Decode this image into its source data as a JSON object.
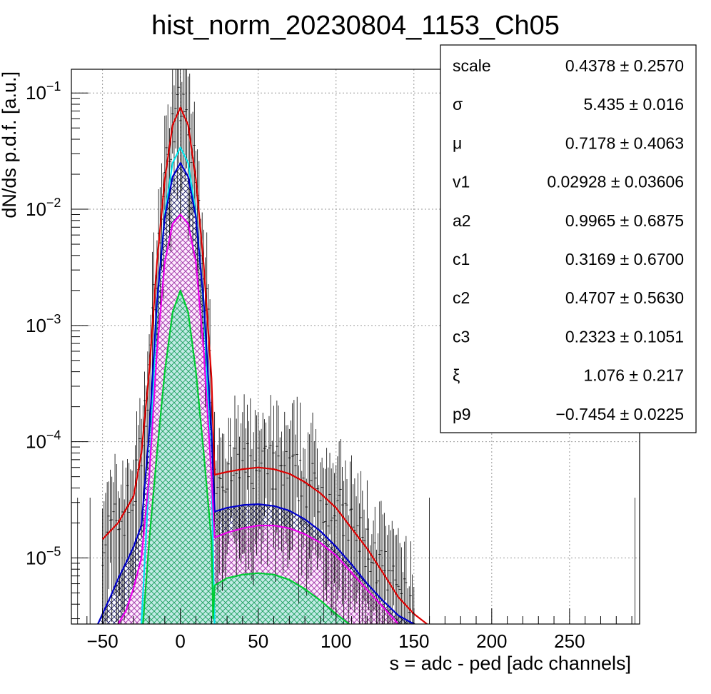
{
  "chart_data": {
    "type": "line",
    "title": "hist_norm_20230804_1153_Ch05",
    "xlabel": "s = adc - ped [adc channels]",
    "ylabel": "dN/ds p.d.f. [a.u.]",
    "x_range": [
      -70,
      295
    ],
    "y_range": [
      2.7e-06,
      0.16
    ],
    "y_scale": "log",
    "grid": true,
    "x_ticks": [
      {
        "value": -50,
        "label": "−50"
      },
      {
        "value": 0,
        "label": "0"
      },
      {
        "value": 50,
        "label": "50"
      },
      {
        "value": 100,
        "label": "100"
      },
      {
        "value": 150,
        "label": "150"
      },
      {
        "value": 200,
        "label": "200"
      },
      {
        "value": 250,
        "label": "250"
      }
    ],
    "y_ticks": [
      {
        "value": 1e-05,
        "base": "10",
        "exp": "−5"
      },
      {
        "value": 0.0001,
        "base": "10",
        "exp": "−4"
      },
      {
        "value": 0.001,
        "base": "10",
        "exp": "−3"
      },
      {
        "value": 0.01,
        "base": "10",
        "exp": "−2"
      },
      {
        "value": 0.1,
        "base": "10",
        "exp": "−1"
      }
    ],
    "series": [
      {
        "color": "#dd0000",
        "fill": "none",
        "x": [
          -50,
          -40,
          -30,
          -25,
          -20,
          -15,
          -10,
          -5,
          0,
          5,
          10,
          15,
          20,
          22,
          30,
          40,
          50,
          60,
          70,
          80,
          90,
          100,
          110,
          120,
          130,
          140,
          150,
          160
        ],
        "y": [
          1.45e-05,
          2e-05,
          3.4e-05,
          8e-05,
          0.0004,
          0.0035,
          0.018,
          0.053,
          0.075,
          0.053,
          0.018,
          0.0033,
          0.00035,
          5.2e-05,
          5.5e-05,
          5.8e-05,
          6e-05,
          5.8e-05,
          5.3e-05,
          4.5e-05,
          3.6e-05,
          2.7e-05,
          1.8e-05,
          1.2e-05,
          7.5e-06,
          4.6e-06,
          3.3e-06,
          2.6e-06
        ]
      },
      {
        "color": "#00e5ee",
        "fill": "none",
        "x": [
          -25,
          -20,
          -15,
          -10,
          -5,
          0,
          5,
          10,
          15,
          20,
          22
        ],
        "y": [
          2.7e-06,
          5e-05,
          0.0015,
          0.009,
          0.025,
          0.034,
          0.025,
          0.009,
          0.0015,
          5e-05,
          2.7e-06
        ]
      },
      {
        "color": "#0000cc",
        "fill": "#000066",
        "x": [
          -53,
          -45,
          -40,
          -35,
          -30,
          -25,
          -20,
          -15,
          -10,
          -5,
          0,
          5,
          10,
          15,
          20,
          22,
          30,
          40,
          50,
          60,
          70,
          80,
          90,
          100,
          110,
          120,
          130,
          140,
          150,
          160
        ],
        "y": [
          2.7e-06,
          4.6e-06,
          6.6e-06,
          9e-06,
          1.25e-05,
          1.9e-05,
          0.00012,
          0.0016,
          0.0085,
          0.019,
          0.025,
          0.019,
          0.0085,
          0.0016,
          0.00012,
          2.5e-05,
          2.7e-05,
          2.85e-05,
          2.9e-05,
          2.8e-05,
          2.55e-05,
          2.15e-05,
          1.7e-05,
          1.25e-05,
          8.8e-06,
          6e-06,
          4.3e-06,
          3.2e-06,
          2.7e-06,
          2.1e-06
        ]
      },
      {
        "color": "#ee00ee",
        "fill": "#990099",
        "x": [
          -40,
          -35,
          -30,
          -25,
          -20,
          -15,
          -10,
          -5,
          0,
          5,
          10,
          15,
          20,
          22,
          30,
          40,
          50,
          60,
          70,
          80,
          90,
          100,
          110,
          120,
          130,
          140,
          150
        ],
        "y": [
          2.7e-06,
          3.5e-06,
          5.5e-06,
          1e-05,
          5e-05,
          0.0006,
          0.0035,
          0.0075,
          0.009,
          0.0075,
          0.0035,
          0.0006,
          5e-05,
          1.5e-05,
          1.65e-05,
          1.8e-05,
          1.9e-05,
          1.9e-05,
          1.8e-05,
          1.6e-05,
          1.35e-05,
          1.05e-05,
          7.5e-06,
          5.3e-06,
          3.8e-06,
          2.7e-06,
          2.1e-06
        ]
      },
      {
        "color": "#00cc33",
        "fill": "#009933",
        "x": [
          -24,
          -20,
          -15,
          -10,
          -5,
          0,
          5,
          10,
          15,
          20,
          21,
          22,
          30,
          40,
          50,
          60,
          70,
          80,
          90,
          100,
          110
        ],
        "y": [
          2.7e-06,
          1.4e-05,
          8e-05,
          0.0004,
          0.0013,
          0.002,
          0.0013,
          0.0004,
          8e-05,
          1.4e-05,
          3e-06,
          5.8e-06,
          6.7e-06,
          7.2e-06,
          7.4e-06,
          7.2e-06,
          6.5e-06,
          5.4e-06,
          4.3e-06,
          3.3e-06,
          2.6e-06
        ]
      }
    ]
  },
  "stats_box": {
    "rows": [
      {
        "name": "scale",
        "value": "0.4378 ± 0.2570"
      },
      {
        "name": "σ",
        "value": "5.435 ± 0.016"
      },
      {
        "name": "μ",
        "value": "0.7178 ± 0.4063"
      },
      {
        "name": "v1",
        "value": "0.02928 ± 0.03606"
      },
      {
        "name": "a2",
        "value": "0.9965 ± 0.6875"
      },
      {
        "name": "c1",
        "value": "0.3169 ± 0.6700"
      },
      {
        "name": "c2",
        "value": "0.4707 ± 0.5630"
      },
      {
        "name": "c3",
        "value": "0.2323 ± 0.1051"
      },
      {
        "name": "ξ",
        "value": "1.076 ± 0.217"
      },
      {
        "name": "p9",
        "value": "−0.7454 ± 0.0225"
      }
    ]
  }
}
